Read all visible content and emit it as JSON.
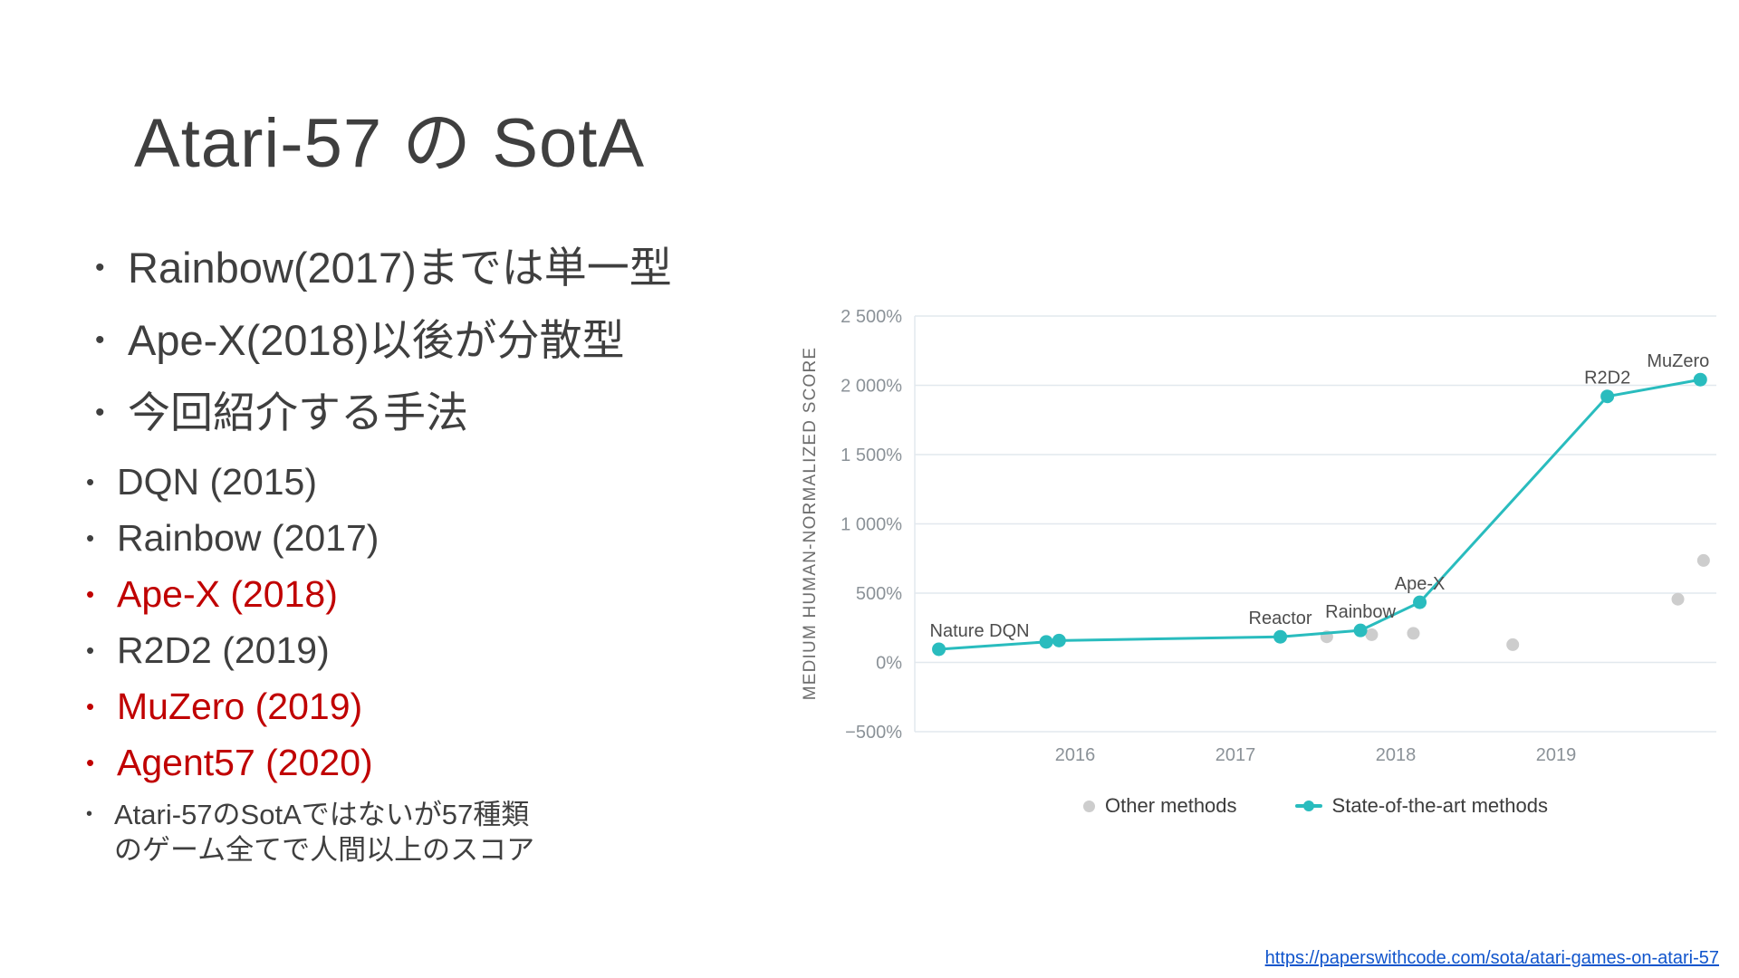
{
  "slide": {
    "title": "Atari-57 の SotA",
    "bullet_char": "•",
    "bullets_l1": [
      "Rainbow(2017)までは単一型",
      "Ape-X(2018)以後が分散型",
      "今回紹介する手法"
    ],
    "bullets_l2": [
      {
        "text": "DQN (2015)",
        "color": "default"
      },
      {
        "text": "Rainbow (2017)",
        "color": "default"
      },
      {
        "text": "Ape-X (2018)",
        "color": "red"
      },
      {
        "text": "R2D2 (2019)",
        "color": "default"
      },
      {
        "text": "MuZero (2019)",
        "color": "red"
      },
      {
        "text": "Agent57 (2020)",
        "color": "red"
      }
    ],
    "bullet_l3": "Atari-57のSotAではないが57種類のゲーム全てで人間以上のスコア",
    "source_link": "https://paperswithcode.com/sota/atari-games-on-atari-57"
  },
  "colors": {
    "text": "#3f3f3f",
    "red": "#c00000",
    "link": "#1155cc",
    "teal": "#29bcbe",
    "gray_dot": "#cdcdcd",
    "grid": "#e2e8ee",
    "tick_text": "#8b9298",
    "axis_label_text": "#6e6e6e"
  },
  "chart_data": {
    "type": "line",
    "title": "",
    "xlabel": "",
    "ylabel": "MEDIUM HUMAN-NORMALIZED SCORE",
    "xlim": [
      2015.0,
      2020.0
    ],
    "ylim": [
      -500,
      2500
    ],
    "x_ticks": [
      2016,
      2017,
      2018,
      2019
    ],
    "y_ticks": [
      {
        "value": 2500,
        "label": "2 500%"
      },
      {
        "value": 2000,
        "label": "2 000%"
      },
      {
        "value": 1500,
        "label": "1 500%"
      },
      {
        "value": 1000,
        "label": "1 000%"
      },
      {
        "value": 500,
        "label": "500%"
      },
      {
        "value": 0,
        "label": "0%"
      },
      {
        "value": -500,
        "label": "−500%"
      }
    ],
    "grid": "horizontal",
    "legend_position": "bottom",
    "series": [
      {
        "name": "Other methods",
        "type": "scatter",
        "color": "#cdcdcd",
        "points": [
          {
            "x": 2017.57,
            "y": 185
          },
          {
            "x": 2017.85,
            "y": 200
          },
          {
            "x": 2018.11,
            "y": 210
          },
          {
            "x": 2018.73,
            "y": 128
          },
          {
            "x": 2019.76,
            "y": 456
          },
          {
            "x": 2019.92,
            "y": 736
          }
        ]
      },
      {
        "name": "State-of-the-art methods",
        "type": "line",
        "color": "#29bcbe",
        "points": [
          {
            "x": 2015.15,
            "y": 95,
            "label": "Nature DQN"
          },
          {
            "x": 2015.82,
            "y": 148
          },
          {
            "x": 2015.9,
            "y": 158
          },
          {
            "x": 2017.28,
            "y": 185,
            "label": "Reactor"
          },
          {
            "x": 2017.78,
            "y": 231,
            "label": "Rainbow"
          },
          {
            "x": 2018.15,
            "y": 434,
            "label": "Ape-X"
          },
          {
            "x": 2019.32,
            "y": 1920,
            "label": "R2D2"
          },
          {
            "x": 2019.9,
            "y": 2041,
            "label": "MuZero"
          }
        ]
      }
    ],
    "legend": [
      {
        "label": "Other methods",
        "marker": "dot"
      },
      {
        "label": "State-of-the-art methods",
        "marker": "line-dot"
      }
    ]
  }
}
